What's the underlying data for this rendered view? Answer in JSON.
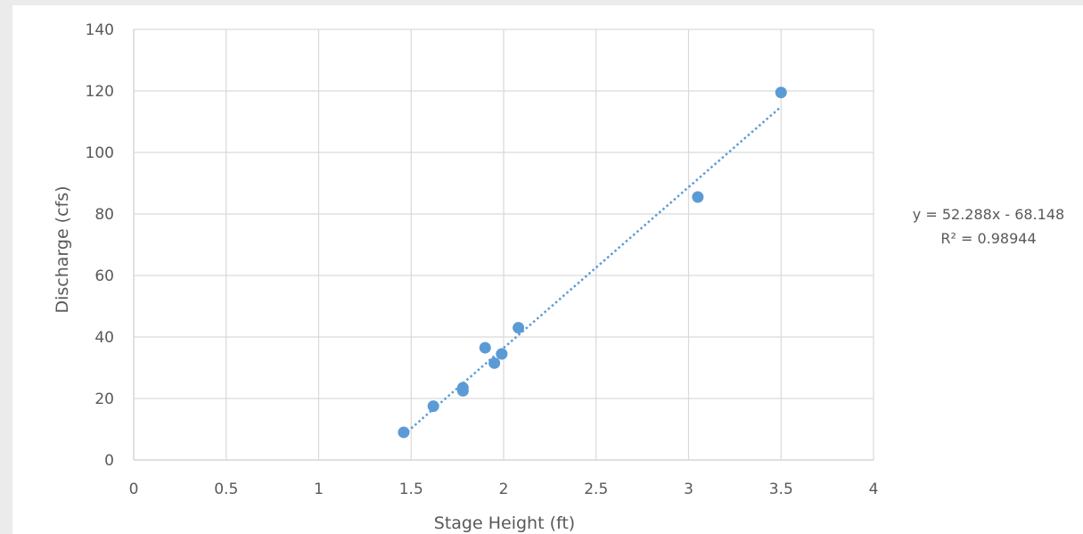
{
  "chart_data": {
    "type": "scatter",
    "title": "",
    "xlabel": "Stage Height (ft)",
    "ylabel": "Discharge (cfs)",
    "xlim": [
      0,
      4
    ],
    "ylim": [
      0,
      140
    ],
    "x_ticks": [
      "0",
      "0.5",
      "1",
      "1.5",
      "2",
      "2.5",
      "3",
      "3.5",
      "4"
    ],
    "y_ticks": [
      "0",
      "20",
      "40",
      "60",
      "80",
      "100",
      "120",
      "140"
    ],
    "x_tick_values": [
      0,
      0.5,
      1,
      1.5,
      2,
      2.5,
      3,
      3.5,
      4
    ],
    "y_tick_values": [
      0,
      20,
      40,
      60,
      80,
      100,
      120,
      140
    ],
    "grid": true,
    "series": [
      {
        "color": "#5b9bd5",
        "points": [
          {
            "x": 1.46,
            "y": 9
          },
          {
            "x": 1.62,
            "y": 17.5
          },
          {
            "x": 1.78,
            "y": 22.5
          },
          {
            "x": 1.78,
            "y": 23.5
          },
          {
            "x": 1.9,
            "y": 36.5
          },
          {
            "x": 1.95,
            "y": 31.5
          },
          {
            "x": 1.99,
            "y": 34.5
          },
          {
            "x": 2.08,
            "y": 43
          },
          {
            "x": 3.05,
            "y": 85.5
          },
          {
            "x": 3.5,
            "y": 119.5
          }
        ]
      }
    ],
    "trendline": {
      "type": "linear",
      "slope": 52.288,
      "intercept": -68.148,
      "x_range": [
        1.46,
        3.5
      ],
      "style": "dotted",
      "color": "#5b9bd5",
      "equation_label": "y = 52.288x - 68.148",
      "r2_label": "R² = 0.98944"
    }
  }
}
